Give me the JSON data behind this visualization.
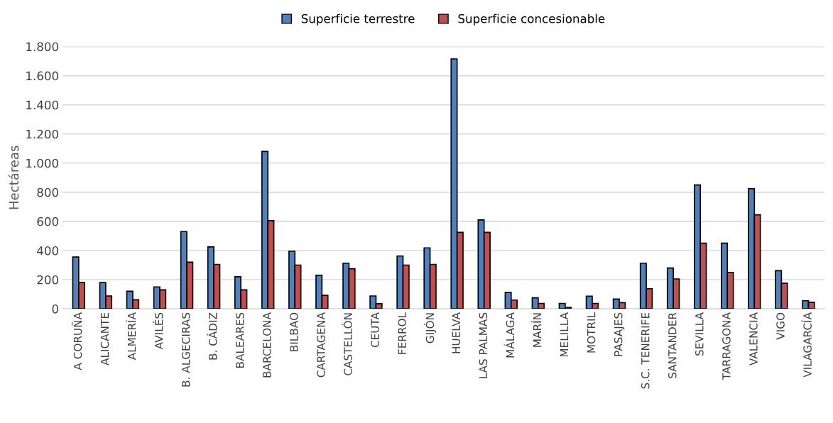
{
  "chart_data": {
    "type": "bar",
    "ylabel": "Hectáreas",
    "categories": [
      "A CORUÑA",
      "ALICANTE",
      "ALMERÍA",
      "AVILÉS",
      "B. ALGECIRAS",
      "B. CÁDIZ",
      "BALEARES",
      "BARCELONA",
      "BILBAO",
      "CARTAGENA",
      "CASTELLÓN",
      "CEUTA",
      "FERROL",
      "GIJÓN",
      "HUELVA",
      "LAS PALMAS",
      "MÁLAGA",
      "MARÍN",
      "MELILLA",
      "MOTRIL",
      "PASAJES",
      "S.C. TENERIFE",
      "SANTANDER",
      "SEVILLA",
      "TARRAGONA",
      "VALENCIA",
      "VIGO",
      "VILAGARCÍA"
    ],
    "series": [
      {
        "name": "Superficie terrestre",
        "color": "#4f81bd",
        "values": [
          355,
          180,
          120,
          150,
          530,
          425,
          220,
          1080,
          395,
          230,
          312,
          88,
          362,
          418,
          1715,
          610,
          112,
          75,
          37,
          87,
          67,
          312,
          280,
          850,
          450,
          825,
          262,
          55
        ]
      },
      {
        "name": "Superficie concesionable",
        "color": "#c0504d",
        "values": [
          180,
          88,
          62,
          130,
          320,
          305,
          130,
          605,
          300,
          92,
          275,
          35,
          300,
          305,
          525,
          525,
          60,
          37,
          10,
          37,
          42,
          138,
          205,
          450,
          250,
          645,
          175,
          45
        ]
      }
    ],
    "ylim": [
      0,
      1800
    ],
    "yticks": [
      {
        "value": 0,
        "label": "0"
      },
      {
        "value": 200,
        "label": "200"
      },
      {
        "value": 400,
        "label": "400"
      },
      {
        "value": 600,
        "label": "600"
      },
      {
        "value": 800,
        "label": "800"
      },
      {
        "value": 1000,
        "label": "1.000"
      },
      {
        "value": 1200,
        "label": "1.200"
      },
      {
        "value": 1400,
        "label": "1.400"
      },
      {
        "value": 1600,
        "label": "1.600"
      },
      {
        "value": 1800,
        "label": "1.800"
      }
    ],
    "grid": "y",
    "legend": "top"
  }
}
